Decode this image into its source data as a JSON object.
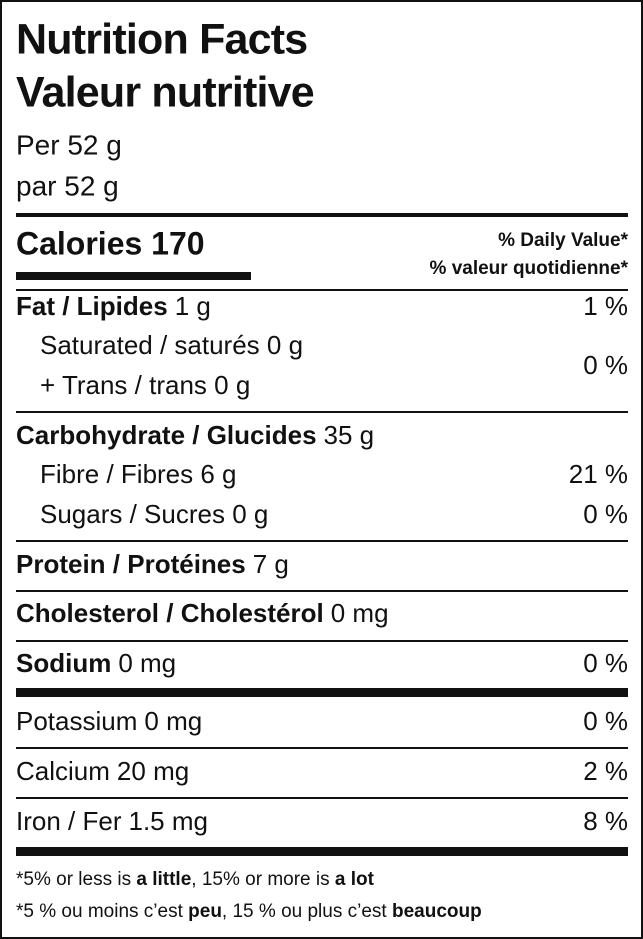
{
  "header": {
    "title_en": "Nutrition Facts",
    "title_fr": "Valeur nutritive",
    "serving_en": "Per 52 g",
    "serving_fr": "par 52 g"
  },
  "calories": "Calories 170",
  "daily_value_header": [
    "% Daily Value*",
    "% valeur quotidienne*"
  ],
  "rows": [
    {
      "name": "Fat / Lipides",
      "amount": "1 g",
      "dv": "1 %"
    },
    {
      "lines": [
        "Saturated / saturés 0 g",
        "+ Trans / trans 0 g"
      ],
      "dv": "0 %"
    },
    {
      "name": "Carbohydrate / Glucides",
      "amount": "35 g"
    },
    {
      "lines": [
        "Fibre / Fibres 6 g"
      ],
      "dv": "21 %"
    },
    {
      "lines": [
        "Sugars / Sucres 0 g"
      ],
      "dv": "0 %"
    },
    {
      "name": "Protein / Protéines",
      "amount": "7 g"
    },
    {
      "name": "Cholesterol / Cholestérol",
      "amount": "0 mg"
    },
    {
      "name": "Sodium",
      "amount": "0 mg",
      "dv": "0 %"
    },
    {
      "name": "Potassium",
      "amount": "0 mg",
      "dv": "0 %"
    },
    {
      "name": "Calcium",
      "amount": "20 mg",
      "dv": "2 %"
    },
    {
      "name": "Iron / Fer",
      "amount": "1.5 mg",
      "dv": "8 %"
    }
  ],
  "footnotes": [
    [
      "*5% or less is ",
      "a little",
      ", 15% or more is ",
      "a lot"
    ],
    [
      "*5 % ou moins c’est ",
      "peu",
      ", 15 % ou plus c’est ",
      "beaucoup"
    ]
  ]
}
